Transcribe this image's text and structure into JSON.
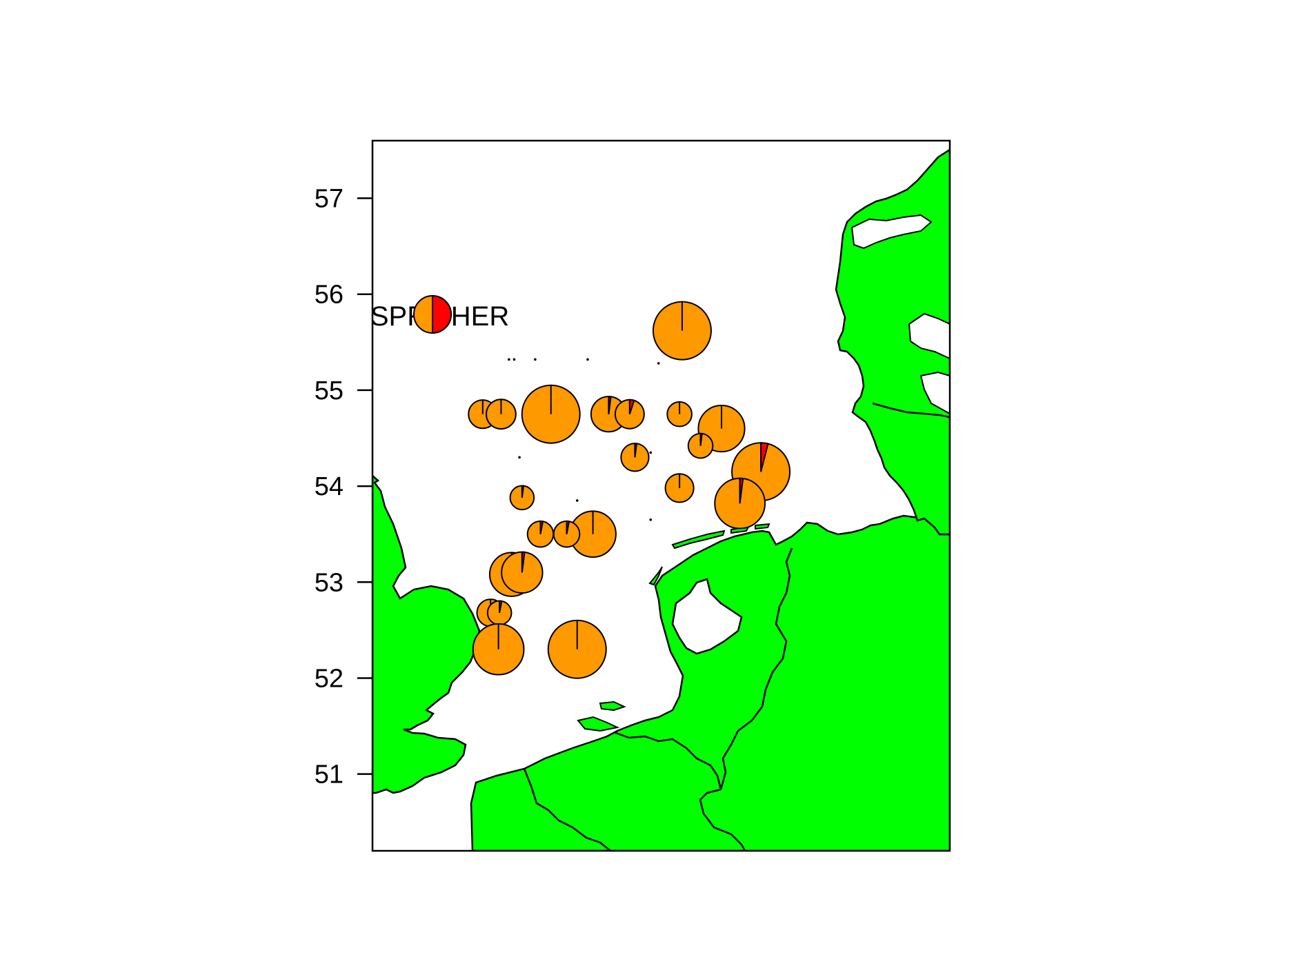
{
  "chart_data": {
    "type": "pie-map",
    "region": "Southern North Sea",
    "colors": {
      "land": "#00ff00",
      "sea": "#ffffff",
      "SPR": "#ff9900",
      "HER": "#ff0000",
      "outline": "#000000"
    },
    "y_axis": {
      "ticks": [
        51,
        52,
        53,
        54,
        55,
        56,
        57
      ],
      "ylim": [
        50.2,
        57.6
      ]
    },
    "x_range_lon": [
      -0.5,
      10.5
    ],
    "legend": {
      "labels": [
        "SPR",
        "HER"
      ],
      "her_fraction": 0.5
    },
    "pies": [
      {
        "lon": 5.4,
        "lat": 55.62,
        "size": 1.0,
        "her": 0.0
      },
      {
        "lon": 2.9,
        "lat": 54.75,
        "size": 1.0,
        "her": 0.0
      },
      {
        "lon": 1.6,
        "lat": 54.75,
        "size": 0.24,
        "her": 0.0
      },
      {
        "lon": 1.95,
        "lat": 54.75,
        "size": 0.26,
        "her": 0.0
      },
      {
        "lon": 3.0,
        "lat": 54.75,
        "size": 0.0,
        "her": 0.0
      },
      {
        "lon": 4.0,
        "lat": 54.75,
        "size": 0.37,
        "her": 0.02
      },
      {
        "lon": 4.4,
        "lat": 54.75,
        "size": 0.25,
        "her": 0.05
      },
      {
        "lon": 5.35,
        "lat": 54.75,
        "size": 0.18,
        "her": 0.0
      },
      {
        "lon": 6.15,
        "lat": 54.6,
        "size": 0.64,
        "her": 0.0
      },
      {
        "lon": 4.5,
        "lat": 54.3,
        "size": 0.23,
        "her": 0.02
      },
      {
        "lon": 5.75,
        "lat": 54.42,
        "size": 0.18,
        "her": 0.02
      },
      {
        "lon": 6.9,
        "lat": 54.15,
        "size": 1.0,
        "her": 0.04
      },
      {
        "lon": 5.35,
        "lat": 53.98,
        "size": 0.24,
        "her": 0.0
      },
      {
        "lon": 2.35,
        "lat": 53.88,
        "size": 0.17,
        "her": 0.02
      },
      {
        "lon": 6.5,
        "lat": 53.82,
        "size": 0.75,
        "her": 0.02
      },
      {
        "lon": 3.7,
        "lat": 53.5,
        "size": 0.63,
        "her": 0.0
      },
      {
        "lon": 3.2,
        "lat": 53.5,
        "size": 0.2,
        "her": 0.03
      },
      {
        "lon": 2.7,
        "lat": 53.5,
        "size": 0.2,
        "her": 0.03
      },
      {
        "lon": 2.15,
        "lat": 53.08,
        "size": 0.57,
        "her": 0.0
      },
      {
        "lon": 2.35,
        "lat": 53.1,
        "size": 0.5,
        "her": 0.02
      },
      {
        "lon": 1.75,
        "lat": 52.68,
        "size": 0.22,
        "her": 0.0
      },
      {
        "lon": 1.92,
        "lat": 52.68,
        "size": 0.17,
        "her": 0.03
      },
      {
        "lon": 1.9,
        "lat": 52.3,
        "size": 0.77,
        "her": 0.0
      },
      {
        "lon": 3.4,
        "lat": 52.3,
        "size": 1.0,
        "her": 0.0
      }
    ],
    "dots": [
      {
        "lon": 2.1,
        "lat": 55.32
      },
      {
        "lon": 2.2,
        "lat": 55.32
      },
      {
        "lon": 2.6,
        "lat": 55.32
      },
      {
        "lon": 3.6,
        "lat": 55.32
      },
      {
        "lon": 2.3,
        "lat": 54.3
      },
      {
        "lon": 4.8,
        "lat": 54.35
      },
      {
        "lon": 3.4,
        "lat": 53.85
      },
      {
        "lon": 4.8,
        "lat": 53.65
      },
      {
        "lon": 4.95,
        "lat": 55.28
      }
    ]
  }
}
